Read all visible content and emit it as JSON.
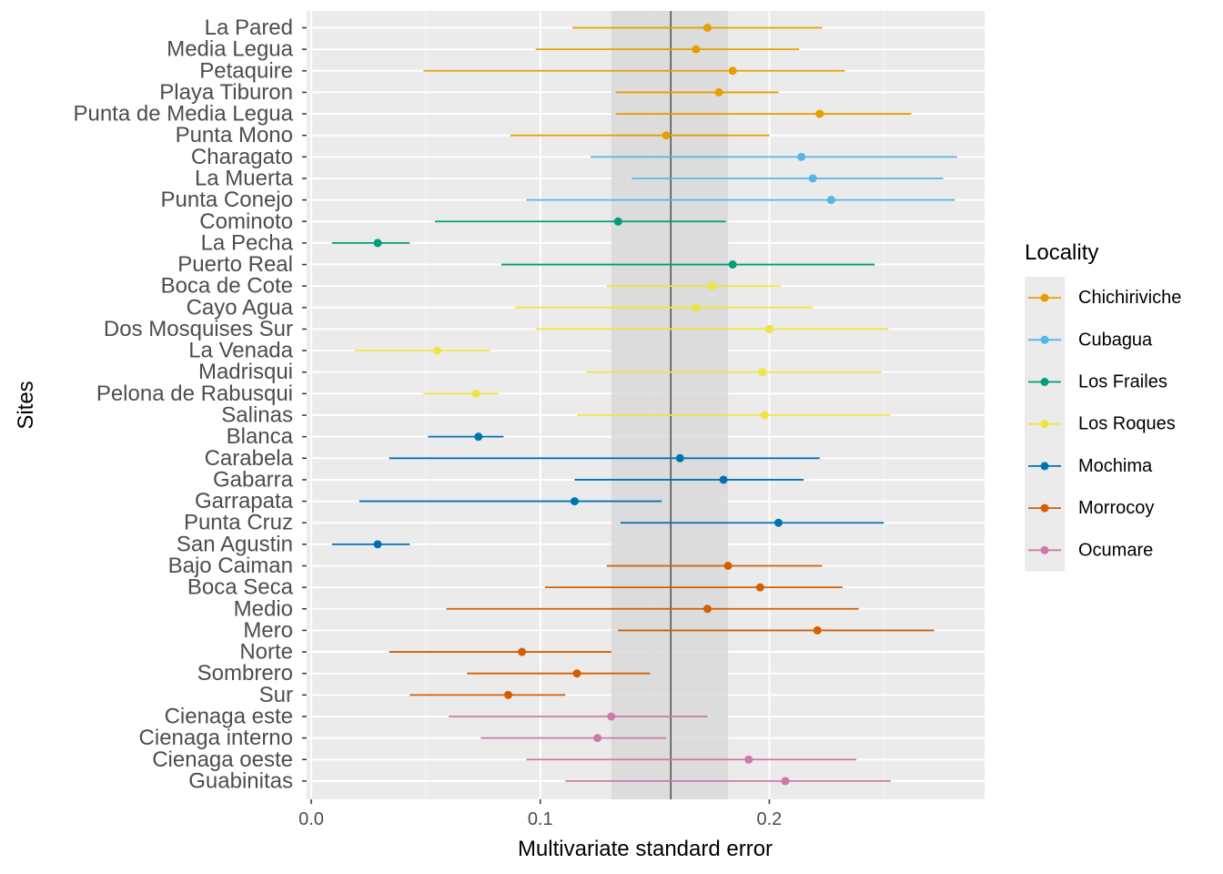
{
  "chart_data": {
    "type": "errorbar",
    "xlabel": "Multivariate standard error",
    "ylabel": "Sites",
    "xlim": [
      -0.002,
      0.294
    ],
    "x_ticks": [
      0.0,
      0.1,
      0.2
    ],
    "x_tick_labels": [
      "0.0",
      "0.1",
      "0.2"
    ],
    "grid": true,
    "reference_line": 0.157,
    "reference_band": [
      0.131,
      0.182
    ],
    "legend": {
      "title": "Locality",
      "placement": "right",
      "entries": [
        {
          "name": "Chichiriviche",
          "color": "#E69F00"
        },
        {
          "name": "Cubagua",
          "color": "#56B4E9"
        },
        {
          "name": "Los Frailes",
          "color": "#009E73"
        },
        {
          "name": "Los Roques",
          "color": "#F0E442"
        },
        {
          "name": "Mochima",
          "color": "#0072B2"
        },
        {
          "name": "Morrocoy",
          "color": "#D55E00"
        },
        {
          "name": "Ocumare",
          "color": "#CC79A7"
        }
      ]
    },
    "points": [
      {
        "site": "La Pared",
        "locality": "Chichiriviche",
        "x": 0.173,
        "lo": 0.114,
        "hi": 0.223
      },
      {
        "site": "Media Legua",
        "locality": "Chichiriviche",
        "x": 0.168,
        "lo": 0.098,
        "hi": 0.213
      },
      {
        "site": "Petaquire",
        "locality": "Chichiriviche",
        "x": 0.184,
        "lo": 0.049,
        "hi": 0.233
      },
      {
        "site": "Playa Tiburon",
        "locality": "Chichiriviche",
        "x": 0.178,
        "lo": 0.133,
        "hi": 0.204
      },
      {
        "site": "Punta de Media Legua",
        "locality": "Chichiriviche",
        "x": 0.222,
        "lo": 0.133,
        "hi": 0.262
      },
      {
        "site": "Punta Mono",
        "locality": "Chichiriviche",
        "x": 0.155,
        "lo": 0.087,
        "hi": 0.2
      },
      {
        "site": "Charagato",
        "locality": "Cubagua",
        "x": 0.214,
        "lo": 0.122,
        "hi": 0.282
      },
      {
        "site": "La Muerta",
        "locality": "Cubagua",
        "x": 0.219,
        "lo": 0.14,
        "hi": 0.276
      },
      {
        "site": "Punta Conejo",
        "locality": "Cubagua",
        "x": 0.227,
        "lo": 0.094,
        "hi": 0.281
      },
      {
        "site": "Cominoto",
        "locality": "Los Frailes",
        "x": 0.134,
        "lo": 0.054,
        "hi": 0.181
      },
      {
        "site": "La Pecha",
        "locality": "Los Frailes",
        "x": 0.029,
        "lo": 0.009,
        "hi": 0.043
      },
      {
        "site": "Puerto Real",
        "locality": "Los Frailes",
        "x": 0.184,
        "lo": 0.083,
        "hi": 0.246
      },
      {
        "site": "Boca de Cote",
        "locality": "Los Roques",
        "x": 0.175,
        "lo": 0.129,
        "hi": 0.205
      },
      {
        "site": "Cayo Agua",
        "locality": "Los Roques",
        "x": 0.168,
        "lo": 0.089,
        "hi": 0.219
      },
      {
        "site": "Dos Mosquises Sur",
        "locality": "Los Roques",
        "x": 0.2,
        "lo": 0.098,
        "hi": 0.252
      },
      {
        "site": "La Venada",
        "locality": "Los Roques",
        "x": 0.055,
        "lo": 0.019,
        "hi": 0.078
      },
      {
        "site": "Madrisqui",
        "locality": "Los Roques",
        "x": 0.197,
        "lo": 0.12,
        "hi": 0.249
      },
      {
        "site": "Pelona de Rabusqui",
        "locality": "Los Roques",
        "x": 0.072,
        "lo": 0.049,
        "hi": 0.082
      },
      {
        "site": "Salinas",
        "locality": "Los Roques",
        "x": 0.198,
        "lo": 0.116,
        "hi": 0.253
      },
      {
        "site": "Blanca",
        "locality": "Mochima",
        "x": 0.073,
        "lo": 0.051,
        "hi": 0.084
      },
      {
        "site": "Carabela",
        "locality": "Mochima",
        "x": 0.161,
        "lo": 0.034,
        "hi": 0.222
      },
      {
        "site": "Gabarra",
        "locality": "Mochima",
        "x": 0.18,
        "lo": 0.115,
        "hi": 0.215
      },
      {
        "site": "Garrapata",
        "locality": "Mochima",
        "x": 0.115,
        "lo": 0.021,
        "hi": 0.153
      },
      {
        "site": "Punta Cruz",
        "locality": "Mochima",
        "x": 0.204,
        "lo": 0.135,
        "hi": 0.25
      },
      {
        "site": "San Agustin",
        "locality": "Mochima",
        "x": 0.029,
        "lo": 0.009,
        "hi": 0.043
      },
      {
        "site": "Bajo Caiman",
        "locality": "Morrocoy",
        "x": 0.182,
        "lo": 0.129,
        "hi": 0.223
      },
      {
        "site": "Boca Seca",
        "locality": "Morrocoy",
        "x": 0.196,
        "lo": 0.102,
        "hi": 0.232
      },
      {
        "site": "Medio",
        "locality": "Morrocoy",
        "x": 0.173,
        "lo": 0.059,
        "hi": 0.239
      },
      {
        "site": "Mero",
        "locality": "Morrocoy",
        "x": 0.221,
        "lo": 0.134,
        "hi": 0.272
      },
      {
        "site": "Norte",
        "locality": "Morrocoy",
        "x": 0.092,
        "lo": 0.034,
        "hi": 0.131
      },
      {
        "site": "Sombrero",
        "locality": "Morrocoy",
        "x": 0.116,
        "lo": 0.068,
        "hi": 0.148
      },
      {
        "site": "Sur",
        "locality": "Morrocoy",
        "x": 0.086,
        "lo": 0.043,
        "hi": 0.111
      },
      {
        "site": "Cienaga este",
        "locality": "Ocumare",
        "x": 0.131,
        "lo": 0.06,
        "hi": 0.173
      },
      {
        "site": "Cienaga interno",
        "locality": "Ocumare",
        "x": 0.125,
        "lo": 0.074,
        "hi": 0.155
      },
      {
        "site": "Cienaga oeste",
        "locality": "Ocumare",
        "x": 0.191,
        "lo": 0.094,
        "hi": 0.238
      },
      {
        "site": "Guabinitas",
        "locality": "Ocumare",
        "x": 0.207,
        "lo": 0.111,
        "hi": 0.253
      }
    ]
  }
}
